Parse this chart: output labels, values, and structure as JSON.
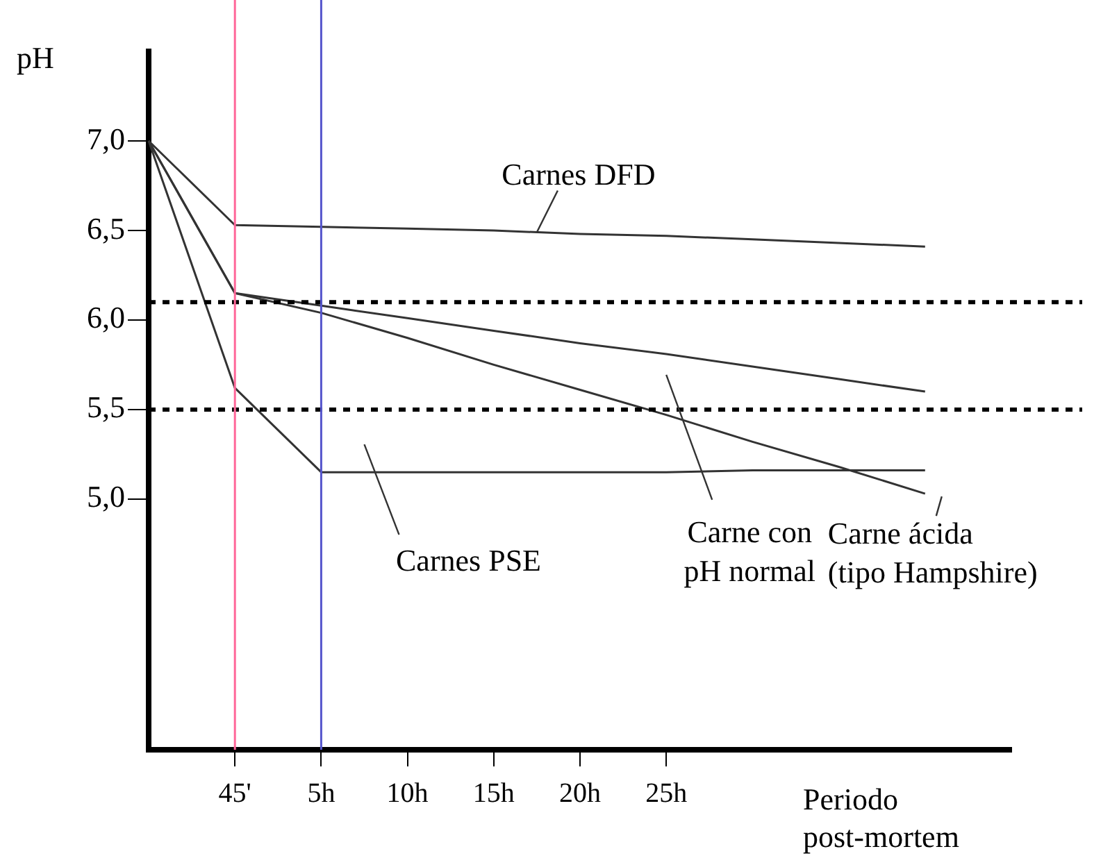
{
  "chart_data": {
    "type": "line",
    "ylabel": "pH",
    "xlabel": "Periodo\npost-mortem",
    "categories": [
      null,
      "45'",
      "5h",
      "10h",
      "15h",
      "20h",
      "25h",
      null,
      null,
      null,
      null
    ],
    "series": [
      {
        "name": "Carnes DFD",
        "color": "#333333",
        "values": [
          7.0,
          6.53,
          6.52,
          6.51,
          6.5,
          6.48,
          6.47,
          6.45,
          6.43,
          6.41,
          null
        ]
      },
      {
        "name": "Carne con\npH normal",
        "color": "#333333",
        "values": [
          7.0,
          6.15,
          6.08,
          6.01,
          5.94,
          5.87,
          5.81,
          5.74,
          5.67,
          5.6,
          null
        ]
      },
      {
        "name": "Carne ácida\n(tipo Hampshire)",
        "color": "#333333",
        "values": [
          7.0,
          6.15,
          6.04,
          5.9,
          5.75,
          5.61,
          5.47,
          5.32,
          5.18,
          5.03,
          null
        ]
      },
      {
        "name": "Carnes PSE",
        "color": "#333333",
        "values": [
          7.0,
          5.62,
          5.15,
          5.15,
          5.15,
          5.15,
          5.15,
          5.16,
          5.16,
          5.16,
          null
        ]
      }
    ],
    "ylim": [
      3.6,
      7.5
    ],
    "yticks": [
      {
        "value": 5,
        "label": "5,0"
      },
      {
        "value": 5.5,
        "label": "5,5"
      },
      {
        "value": 6,
        "label": "6,0"
      },
      {
        "value": 6.5,
        "label": "6,5"
      },
      {
        "value": 7,
        "label": "7,0"
      }
    ],
    "ref_lines": [
      {
        "axis": "y",
        "value": 6.1,
        "line_style": "dotted",
        "color": "#000000"
      },
      {
        "axis": "y",
        "value": 5.5,
        "line_style": "dotted",
        "color": "#000000"
      },
      {
        "axis": "x",
        "value": "45'",
        "color": "#ff6699",
        "line_style": "solid"
      },
      {
        "axis": "x",
        "value": "5h",
        "color": "#5555cc",
        "line_style": "solid"
      }
    ],
    "grid": false,
    "marker": "none",
    "line_style": "solid"
  }
}
